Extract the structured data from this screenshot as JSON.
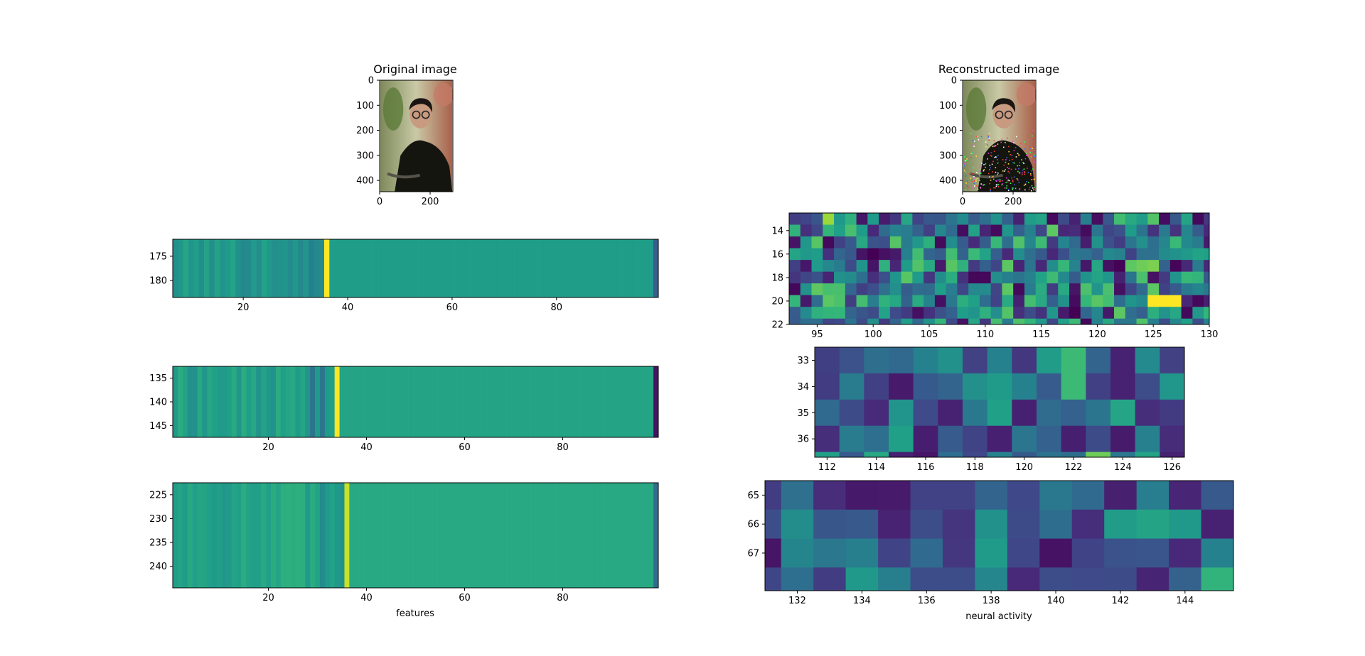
{
  "figure": {
    "background": "#ffffff",
    "colormap": "viridis"
  },
  "chart_data": [
    {
      "type": "image",
      "id": "original",
      "title": "Original image",
      "xticks": [
        "0",
        "200"
      ],
      "yticks": [
        "0",
        "100",
        "200",
        "300",
        "400"
      ],
      "xlim": [
        0,
        290
      ],
      "ylim": [
        445,
        0
      ],
      "content": "photo-person-glasses"
    },
    {
      "type": "image",
      "id": "reconstructed",
      "title": "Reconstructed image",
      "xticks": [
        "0",
        "200"
      ],
      "yticks": [
        "0",
        "100",
        "200",
        "300",
        "400"
      ],
      "xlim": [
        0,
        290
      ],
      "ylim": [
        445,
        0
      ],
      "content": "photo-person-glasses-noisy"
    },
    {
      "type": "heatmap",
      "id": "features-1",
      "xlabel": "",
      "xlim": [
        6.5,
        99.5
      ],
      "ylim": [
        183.5,
        171.5
      ],
      "xticks": [
        20,
        40,
        60,
        80
      ],
      "yticks": [
        175,
        180
      ],
      "base_value": 0.55,
      "highlight_columns": [
        36
      ],
      "highlight_value": 1.0,
      "dark_columns": [
        99
      ],
      "dark_value": 0.3
    },
    {
      "type": "heatmap",
      "id": "features-2",
      "xlabel": "",
      "xlim": [
        0.5,
        99.5
      ],
      "ylim": [
        147.5,
        132.5
      ],
      "xticks": [
        20,
        40,
        60,
        80
      ],
      "yticks": [
        135,
        140,
        145
      ],
      "base_value": 0.58,
      "highlight_columns": [
        34
      ],
      "highlight_value": 1.0,
      "dark_columns": [
        99
      ],
      "dark_value": 0.05
    },
    {
      "type": "heatmap",
      "id": "features-3",
      "xlabel": "features",
      "xlim": [
        0.5,
        99.5
      ],
      "ylim": [
        244.5,
        222.5
      ],
      "xticks": [
        20,
        40,
        60,
        80
      ],
      "yticks": [
        225,
        230,
        235,
        240
      ],
      "base_value": 0.6,
      "highlight_columns": [
        36
      ],
      "highlight_value": 0.92,
      "dark_columns": [
        99
      ],
      "dark_value": 0.35
    },
    {
      "type": "heatmap",
      "id": "activity-1",
      "xlabel": "",
      "xlim": [
        92.5,
        130
      ],
      "ylim": [
        22,
        12.5
      ],
      "xticks": [
        95,
        100,
        105,
        110,
        115,
        120,
        125,
        130
      ],
      "yticks": [
        14,
        16,
        18,
        20,
        22
      ],
      "columns": 38,
      "rows": 10,
      "seed": 11,
      "value_range": [
        0.0,
        0.75
      ],
      "hot_cells": [
        [
          125,
          20,
          1.0
        ],
        [
          126,
          20,
          1.0
        ],
        [
          127,
          20,
          1.0
        ],
        [
          125,
          17,
          0.8
        ],
        [
          124,
          17,
          0.78
        ],
        [
          96,
          13,
          0.85
        ]
      ]
    },
    {
      "type": "heatmap",
      "id": "activity-2",
      "xlabel": "",
      "xlim": [
        111.5,
        126.5
      ],
      "ylim": [
        36.7,
        32.5
      ],
      "xticks": [
        112,
        114,
        116,
        118,
        120,
        122,
        124,
        126
      ],
      "yticks": [
        33,
        34,
        35,
        36
      ],
      "columns": 15,
      "rows": 5,
      "seed": 23,
      "value_range": [
        0.05,
        0.6
      ],
      "hot_cells": [
        [
          122,
          33,
          0.68
        ],
        [
          122,
          34,
          0.68
        ],
        [
          123,
          37,
          0.78
        ]
      ]
    },
    {
      "type": "heatmap",
      "id": "activity-3",
      "xlabel": "neural activity",
      "xlim": [
        131,
        145.5
      ],
      "ylim": [
        68.3,
        64.5
      ],
      "xticks": [
        132,
        134,
        136,
        138,
        140,
        142,
        144
      ],
      "yticks": [
        65,
        66,
        67
      ],
      "columns": 15,
      "rows": 4,
      "seed": 37,
      "value_range": [
        0.05,
        0.55
      ],
      "hot_cells": [
        [
          145,
          68,
          0.65
        ],
        [
          143,
          66,
          0.58
        ]
      ]
    }
  ]
}
